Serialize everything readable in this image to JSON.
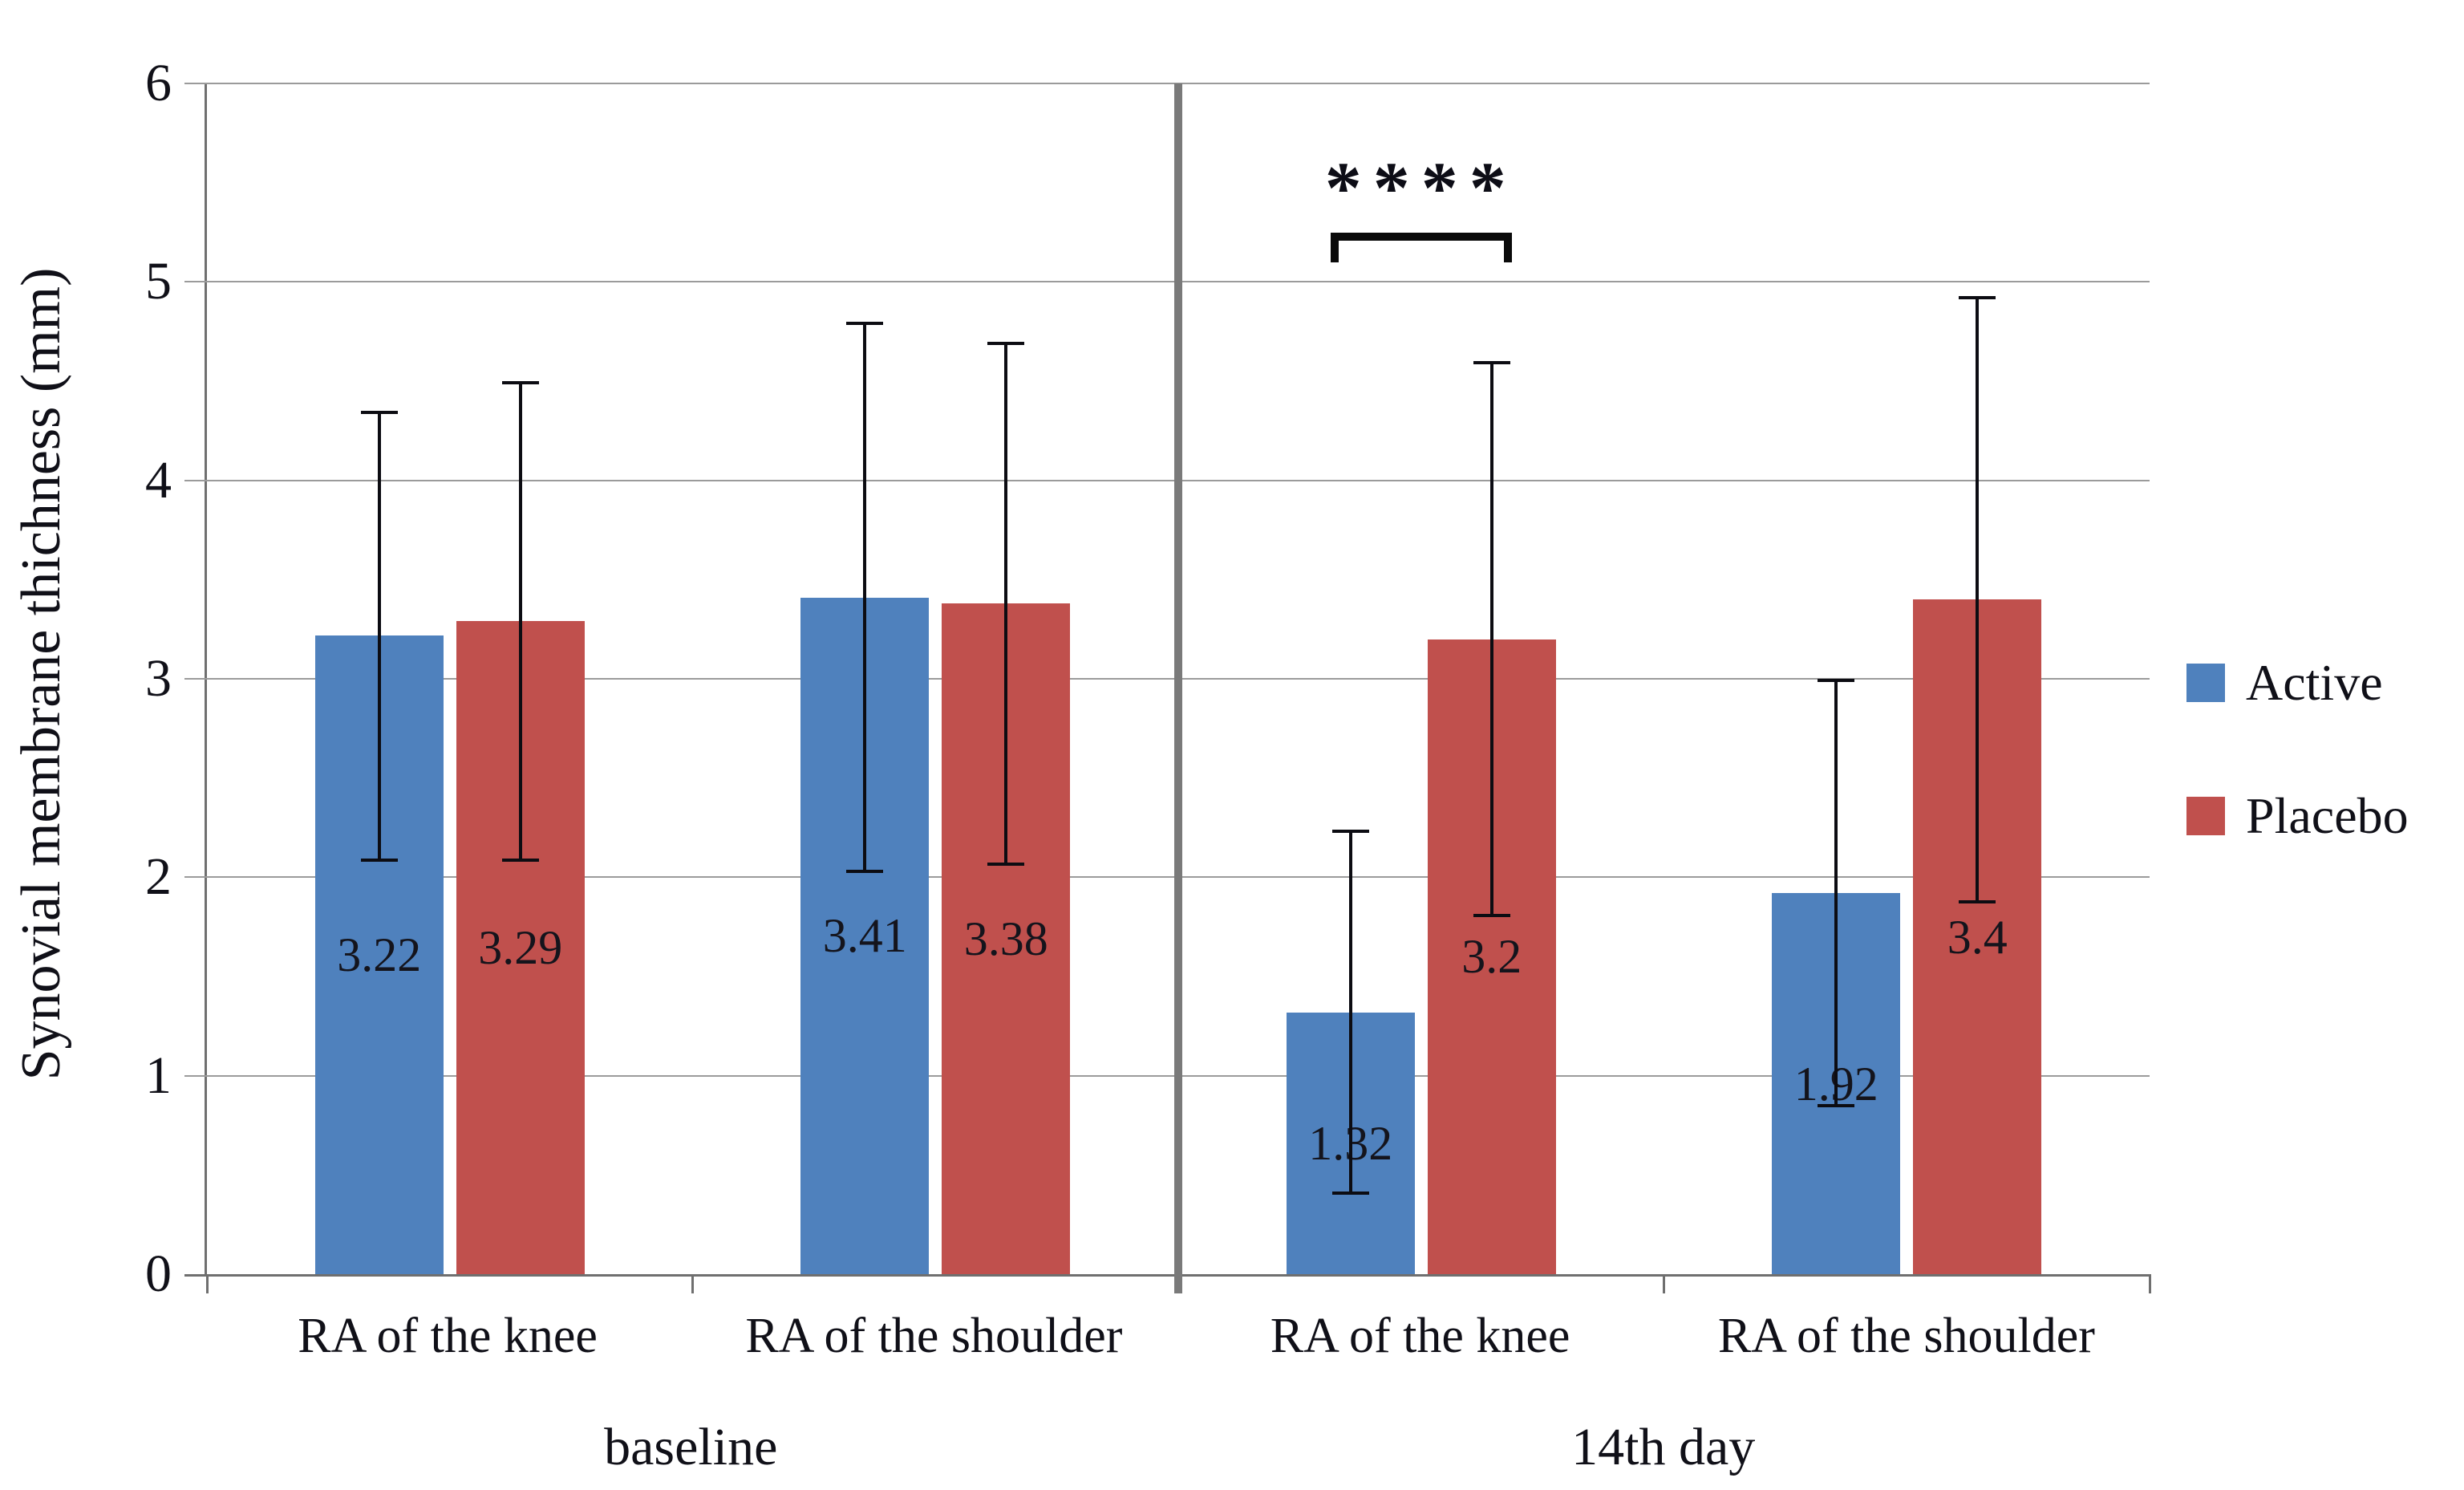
{
  "chart_data": {
    "type": "bar",
    "title": "",
    "ylabel": "Synovial membrane thichness (mm)",
    "xlabel": "",
    "ylim": [
      0,
      6
    ],
    "yticks": [
      0,
      1,
      2,
      3,
      4,
      5,
      6
    ],
    "grid": true,
    "legend_position": "right",
    "groups": [
      "baseline",
      "14th day"
    ],
    "categories": [
      "RA of the knee",
      "RA of the shoulder"
    ],
    "series": [
      {
        "name": "Active",
        "color": "#4F81BD",
        "values": [
          3.22,
          3.41,
          1.32,
          1.92
        ],
        "labels": [
          "3.22",
          "3.41",
          "1.32",
          "1.92"
        ],
        "error_bars": [
          [
            2.08,
            4.35
          ],
          [
            2.02,
            4.8
          ],
          [
            0.4,
            2.24
          ],
          [
            0.84,
            3.0
          ]
        ]
      },
      {
        "name": "Placebo",
        "color": "#C0504D",
        "values": [
          3.29,
          3.38,
          3.2,
          3.4
        ],
        "labels": [
          "3.29",
          "3.38",
          "3.2",
          "3.4"
        ],
        "error_bars": [
          [
            2.08,
            4.5
          ],
          [
            2.06,
            4.7
          ],
          [
            1.8,
            4.6
          ],
          [
            1.87,
            4.93
          ]
        ]
      }
    ],
    "significance": {
      "text": "****",
      "group": "14th day",
      "category": "RA of the knee",
      "bracket_y": 5.1,
      "bracket_top_y": 5.25
    }
  }
}
